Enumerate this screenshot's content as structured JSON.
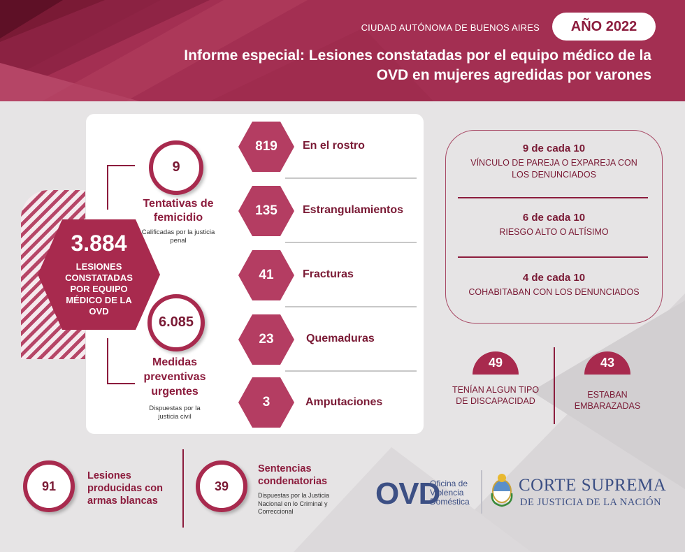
{
  "header": {
    "city": "CIUDAD AUTÓNOMA DE BUENOS AIRES",
    "year": "AÑO 2022",
    "title": "Informe especial: Lesiones constatadas por el equipo médico de la OVD en mujeres agredidas por varones"
  },
  "total": {
    "number": "3.884",
    "label": "LESIONES CONSTATADAS POR EQUIPO MÉDICO DE LA OVD"
  },
  "femicide": {
    "number": "9",
    "label": "Tentativas de femicidio",
    "note": "Calificadas por la justicia penal"
  },
  "measures": {
    "number": "6.085",
    "label": "Medidas preventivas urgentes",
    "note": "Dispuestas por la justicia civil"
  },
  "injuries": [
    {
      "number": "819",
      "label": "En el rostro"
    },
    {
      "number": "135",
      "label": "Estrangulamientos"
    },
    {
      "number": "41",
      "label": "Fracturas"
    },
    {
      "number": "23",
      "label": "Quemaduras"
    },
    {
      "number": "3",
      "label": "Amputaciones"
    }
  ],
  "stats": [
    {
      "head": "9 de cada 10",
      "text": "VÍNCULO DE PAREJA O EXPAREJA CON LOS DENUNCIADOS"
    },
    {
      "head": "6 de cada 10",
      "text": "RIESGO ALTO O ALTÍSIMO"
    },
    {
      "head": "4 de cada 10",
      "text": "COHABITABAN CON LOS DENUNCIADOS"
    }
  ],
  "disability": {
    "number": "49",
    "label": "TENÍAN ALGUN TIPO DE DISCAPACIDAD"
  },
  "pregnant": {
    "number": "43",
    "label": "ESTABAN EMBARAZADAS"
  },
  "weapons": {
    "number": "91",
    "label": "Lesiones producidas con armas blancas"
  },
  "sentences": {
    "number": "39",
    "label": "Sentencias condenatorias",
    "note": "Dispuestas por la Justicia Nacional en lo Criminal y Correccional"
  },
  "logos": {
    "ovd_mark": "OVD",
    "ovd_line1": "Oficina de",
    "ovd_line2": "Violencia",
    "ovd_line3": "Doméstica",
    "csj_line1": "CORTE SUPREMA",
    "csj_line2": "DE JUSTICIA DE LA NACIÓN"
  },
  "colors": {
    "primary": "#a82a4e",
    "dark": "#7a1a35",
    "navy": "#3c4f84",
    "background": "#e6e4e5"
  }
}
